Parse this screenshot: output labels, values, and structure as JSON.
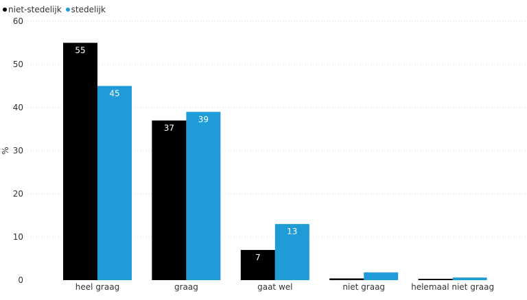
{
  "chart_data": {
    "type": "bar",
    "categories": [
      "heel graag",
      "graag",
      "gaat wel",
      "niet graag",
      "helemaal niet graag"
    ],
    "series": [
      {
        "name": "niet-stedelijk",
        "color": "#000000",
        "values": [
          55,
          37,
          7,
          0.4,
          0.3
        ],
        "labels": [
          "55",
          "37",
          "7",
          "",
          ""
        ]
      },
      {
        "name": "stedelijk",
        "color": "#1f9bd7",
        "values": [
          45,
          39,
          13,
          1.8,
          0.6
        ],
        "labels": [
          "45",
          "39",
          "13",
          "",
          ""
        ]
      }
    ],
    "ylabel": "%",
    "xlabel": "",
    "ylim": [
      0,
      60
    ],
    "yticks": [
      0,
      10,
      20,
      30,
      40,
      50,
      60
    ],
    "grid": true,
    "legend_position": "top-left"
  }
}
